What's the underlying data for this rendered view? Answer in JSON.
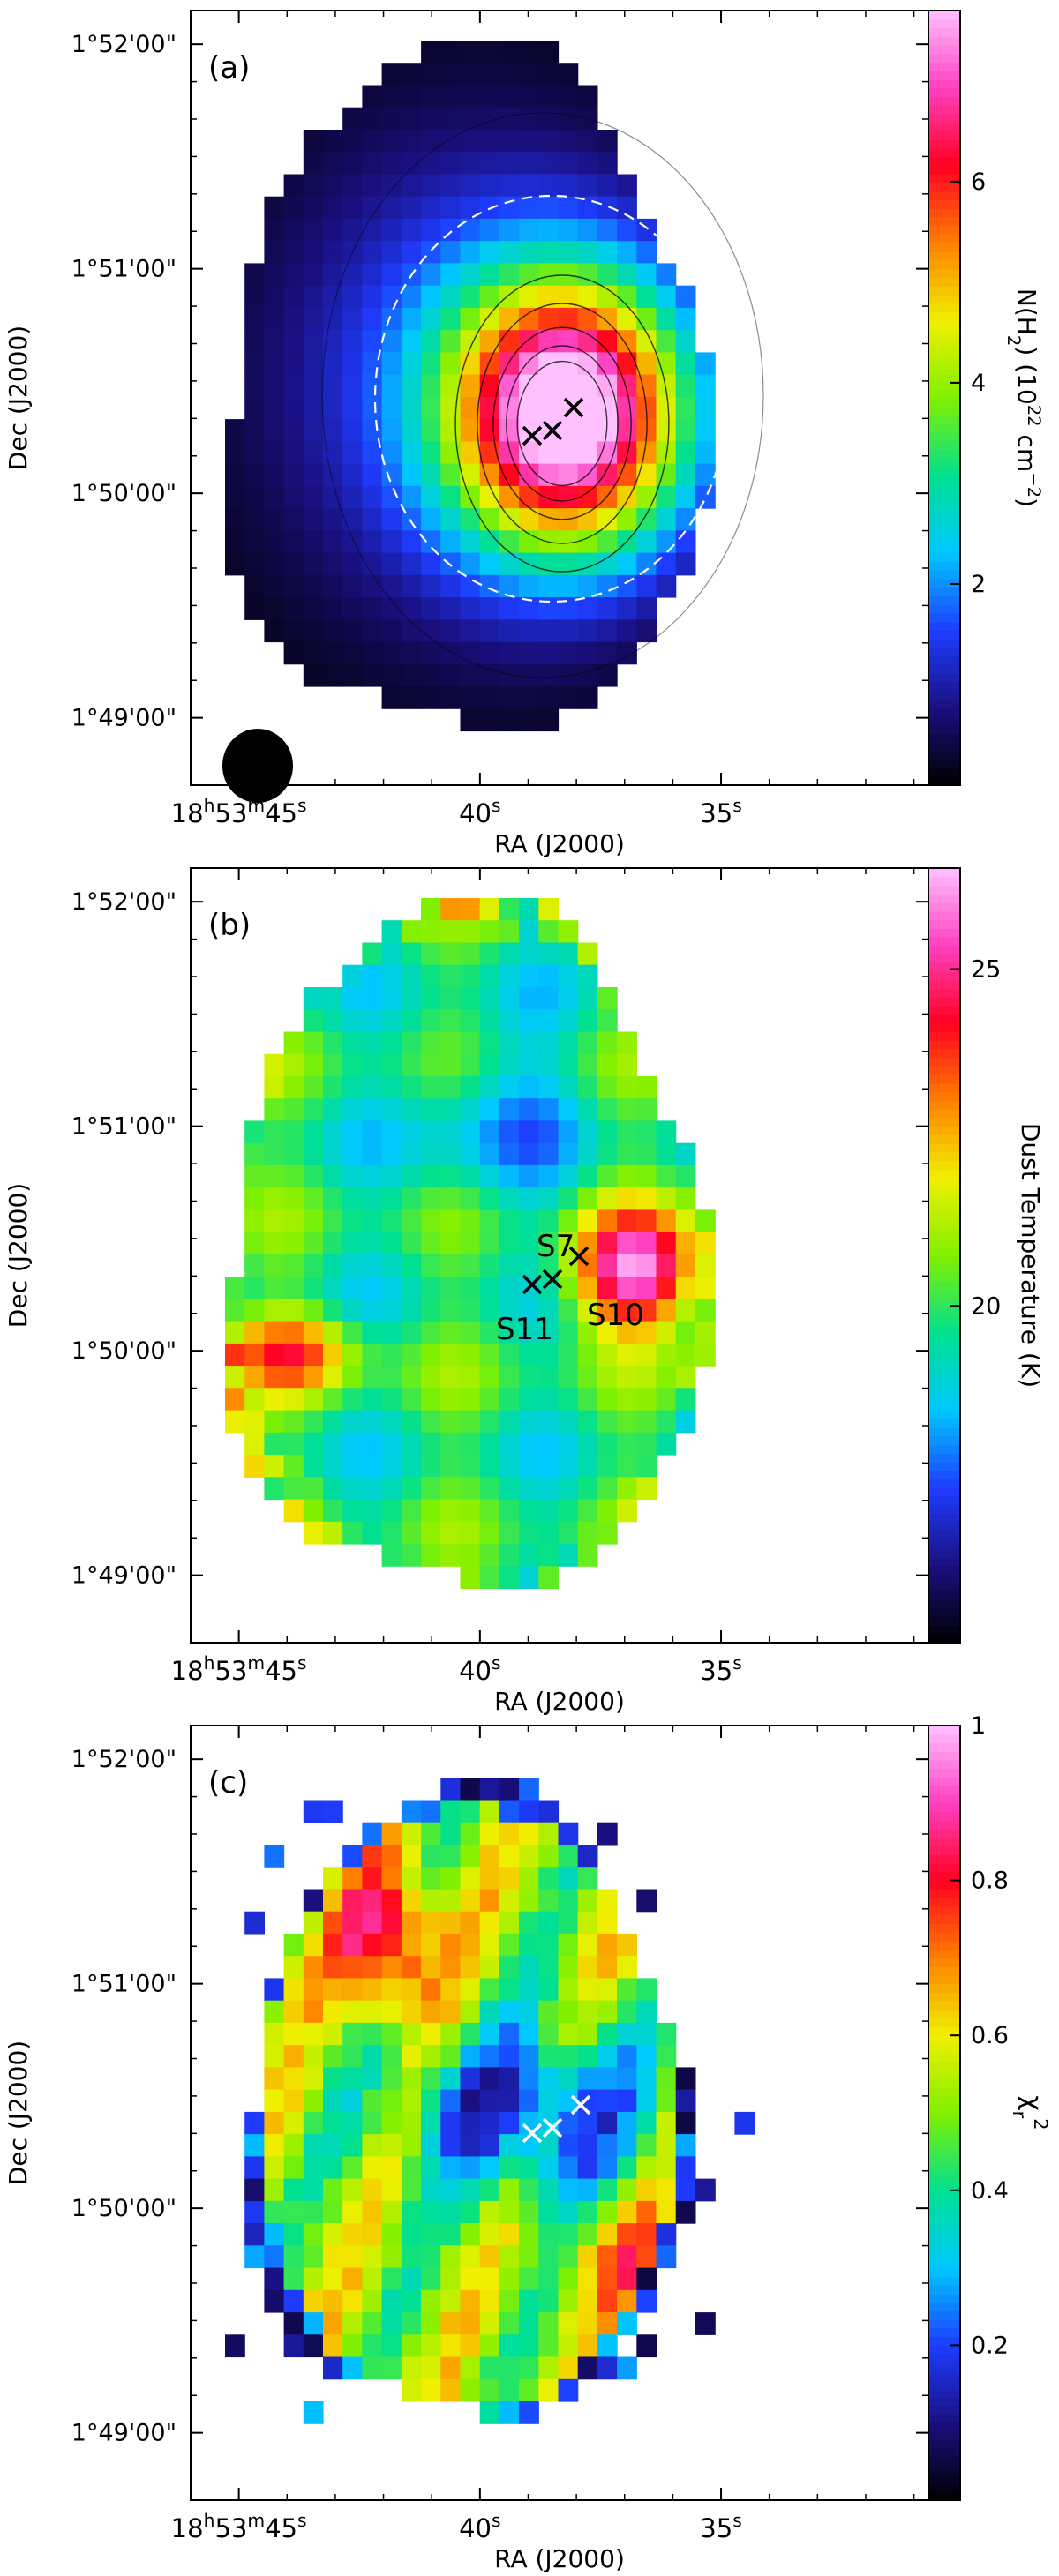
{
  "chart_data": [
    {
      "type": "heatmap",
      "panel_label": "(a)",
      "xlabel": "RA (J2000)",
      "ylabel": "Dec (J2000)",
      "xticks": [
        "18h53m45s",
        "40s",
        "35s"
      ],
      "yticks": [
        "1°49'00\"",
        "1°50'00\"",
        "1°51'00\"",
        "1°52'00\""
      ],
      "colorbar_label": "N(H2) (10^22 cm^-2)",
      "colorbar_ticks": [
        2,
        4,
        6
      ],
      "colorbar_range": [
        0,
        7.7
      ],
      "colormap": [
        "#000000",
        "#1a0f80",
        "#1e3cff",
        "#00c8ff",
        "#00e090",
        "#80f000",
        "#f0f000",
        "#ff8000",
        "#ff0020",
        "#ff40c0",
        "#ffc0ff"
      ],
      "peak_value": 7.5,
      "markers": [
        {
          "ra": "18h53m37.9s",
          "dec": "1°50'30\"",
          "color": "#000000"
        },
        {
          "ra": "18h53m38.3s",
          "dec": "1°50'15\"",
          "color": "#000000"
        },
        {
          "ra": "18h53m38.8s",
          "dec": "1°50'13\"",
          "color": "#000000"
        }
      ],
      "beam_shown": true,
      "contours_shown": true
    },
    {
      "type": "heatmap",
      "panel_label": "(b)",
      "xlabel": "RA (J2000)",
      "ylabel": "Dec (J2000)",
      "xticks": [
        "18h53m45s",
        "40s",
        "35s"
      ],
      "yticks": [
        "1°49'00\"",
        "1°50'00\"",
        "1°51'00\"",
        "1°52'00\""
      ],
      "colorbar_label": "Dust Temperature (K)",
      "colorbar_ticks": [
        20,
        25
      ],
      "colorbar_range": [
        15,
        26.5
      ],
      "colormap": [
        "#000000",
        "#1a0f80",
        "#1e3cff",
        "#00c8ff",
        "#00e090",
        "#80f000",
        "#f0f000",
        "#ff8000",
        "#ff0020",
        "#ff40c0",
        "#ffc0ff"
      ],
      "peak_value": 26,
      "source_labels": [
        "S7",
        "S10",
        "S11"
      ],
      "markers": [
        {
          "name": "S7",
          "ra": "18h53m37.9s",
          "dec": "1°50'30\"",
          "color": "#000000"
        },
        {
          "name": "S10",
          "ra": "18h53m38.3s",
          "dec": "1°50'15\"",
          "color": "#000000"
        },
        {
          "name": "S11",
          "ra": "18h53m38.8s",
          "dec": "1°50'13\"",
          "color": "#000000"
        }
      ]
    },
    {
      "type": "heatmap",
      "panel_label": "(c)",
      "xlabel": "RA (J2000)",
      "ylabel": "Dec (J2000)",
      "xticks": [
        "18h53m45s",
        "40s",
        "35s"
      ],
      "yticks": [
        "1°49'00\"",
        "1°50'00\"",
        "1°51'00\"",
        "1°52'00\""
      ],
      "colorbar_label": "χr²",
      "colorbar_ticks": [
        0.2,
        0.4,
        0.6,
        0.8,
        1
      ],
      "colorbar_range": [
        0,
        1
      ],
      "colormap": [
        "#000000",
        "#1a0f80",
        "#1e3cff",
        "#00c8ff",
        "#00e090",
        "#80f000",
        "#f0f000",
        "#ff8000",
        "#ff0020",
        "#ff40c0",
        "#ffc0ff"
      ],
      "markers": [
        {
          "ra": "18h53m37.9s",
          "dec": "1°50'30\"",
          "color": "#ffffff"
        },
        {
          "ra": "18h53m38.3s",
          "dec": "1°50'15\"",
          "color": "#ffffff"
        },
        {
          "ra": "18h53m38.8s",
          "dec": "1°50'13\"",
          "color": "#ffffff"
        }
      ]
    }
  ],
  "axis_text": {
    "ra_major": "18",
    "ra_h": "h",
    "ra_min": "53",
    "ra_m": "m",
    "ra_sec": "45",
    "s": "s",
    "sec40": "40",
    "sec35": "35",
    "nh2_main": "N(H",
    "nh2_sub": "2",
    "nh2_rest": ") (10",
    "nh2_exp": "22",
    "nh2_unit": " cm",
    "nh2_unit_exp": "−2",
    "nh2_close": ")",
    "chi_main": "χ",
    "chi_sub": "r",
    "chi_sup": "2"
  }
}
